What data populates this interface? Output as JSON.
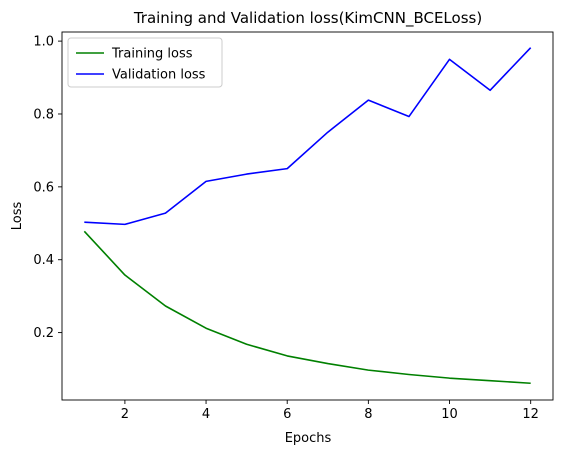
{
  "chart_data": {
    "type": "line",
    "title": "Training and Validation loss(KimCNN_BCELoss)",
    "xlabel": "Epochs",
    "ylabel": "Loss",
    "x": [
      1,
      2,
      3,
      4,
      5,
      6,
      7,
      8,
      9,
      10,
      11,
      12
    ],
    "xlim": [
      0.45,
      12.55
    ],
    "ylim": [
      0.015,
      1.025
    ],
    "xticks": [
      2,
      4,
      6,
      8,
      10,
      12
    ],
    "yticks": [
      0.2,
      0.4,
      0.6,
      0.8,
      1.0
    ],
    "ytick_labels": [
      "0.2",
      "0.4",
      "0.6",
      "0.8",
      "1.0"
    ],
    "grid": false,
    "legend_position": "upper-left",
    "series": [
      {
        "name": "Training loss",
        "color": "#008000",
        "values": [
          0.478,
          0.358,
          0.273,
          0.212,
          0.168,
          0.136,
          0.115,
          0.097,
          0.085,
          0.075,
          0.068,
          0.061
        ]
      },
      {
        "name": "Validation loss",
        "color": "#0000ff",
        "values": [
          0.503,
          0.497,
          0.528,
          0.615,
          0.635,
          0.65,
          0.75,
          0.838,
          0.793,
          0.95,
          0.865,
          0.982
        ]
      }
    ]
  }
}
